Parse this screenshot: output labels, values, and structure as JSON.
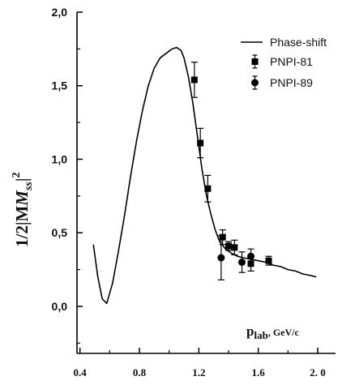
{
  "chart_data": {
    "type": "line",
    "title": "",
    "ylabel": "1/2|M",
    "ylabel_sub": "ss",
    "ylabel_sup": "2",
    "ylabel_end": "|",
    "xlabel_main": "p",
    "xlabel_sub": "lab",
    "xlabel_unit": ", GeV/c",
    "xlim": [
      0.38,
      2.12
    ],
    "ylim": [
      -0.32,
      2.0
    ],
    "x_ticks": [
      0.4,
      0.8,
      1.2,
      1.6,
      2.0
    ],
    "x_tick_labels": [
      "0.4",
      "0.8",
      "1.2",
      "1.6",
      "2. 0"
    ],
    "y_ticks": [
      0.0,
      0.5,
      1.0,
      1.5,
      2.0
    ],
    "y_tick_labels": [
      "0,0",
      "0,5",
      "1,0",
      "1,5",
      "2,0"
    ],
    "grid": false,
    "legend_position": "top-right",
    "series": [
      {
        "name": "Phase-shift",
        "style": "line",
        "color": "#000000",
        "x": [
          0.49,
          0.52,
          0.55,
          0.58,
          0.62,
          0.66,
          0.7,
          0.74,
          0.78,
          0.82,
          0.86,
          0.9,
          0.94,
          0.98,
          1.02,
          1.05,
          1.08,
          1.1,
          1.13,
          1.16,
          1.19,
          1.22,
          1.25,
          1.28,
          1.31,
          1.34,
          1.38,
          1.42,
          1.46,
          1.5,
          1.55,
          1.6,
          1.65,
          1.7,
          1.75,
          1.8,
          1.85,
          1.9,
          1.95,
          1.99
        ],
        "y": [
          0.42,
          0.2,
          0.05,
          0.02,
          0.16,
          0.38,
          0.62,
          0.88,
          1.12,
          1.33,
          1.5,
          1.62,
          1.69,
          1.72,
          1.75,
          1.76,
          1.74,
          1.69,
          1.56,
          1.38,
          1.16,
          0.94,
          0.76,
          0.63,
          0.52,
          0.44,
          0.39,
          0.36,
          0.34,
          0.33,
          0.32,
          0.31,
          0.3,
          0.28,
          0.27,
          0.25,
          0.24,
          0.22,
          0.21,
          0.2
        ]
      },
      {
        "name": "PNPI-81",
        "style": "square",
        "color": "#000000",
        "points": [
          {
            "x": 1.17,
            "y": 1.54,
            "err": 0.12
          },
          {
            "x": 1.21,
            "y": 1.11,
            "err": 0.1
          },
          {
            "x": 1.26,
            "y": 0.8,
            "err": 0.09
          },
          {
            "x": 1.36,
            "y": 0.47,
            "err": 0.05
          },
          {
            "x": 1.4,
            "y": 0.41,
            "err": 0.03
          },
          {
            "x": 1.44,
            "y": 0.4,
            "err": 0.05
          },
          {
            "x": 1.55,
            "y": 0.29,
            "err": 0.05
          },
          {
            "x": 1.67,
            "y": 0.31,
            "err": 0.03
          }
        ]
      },
      {
        "name": "PNPI-89",
        "style": "circle",
        "color": "#000000",
        "points": [
          {
            "x": 1.35,
            "y": 0.33,
            "err": 0.15
          },
          {
            "x": 1.49,
            "y": 0.3,
            "err": 0.07
          },
          {
            "x": 1.55,
            "y": 0.34,
            "err": 0.05
          }
        ]
      }
    ]
  }
}
